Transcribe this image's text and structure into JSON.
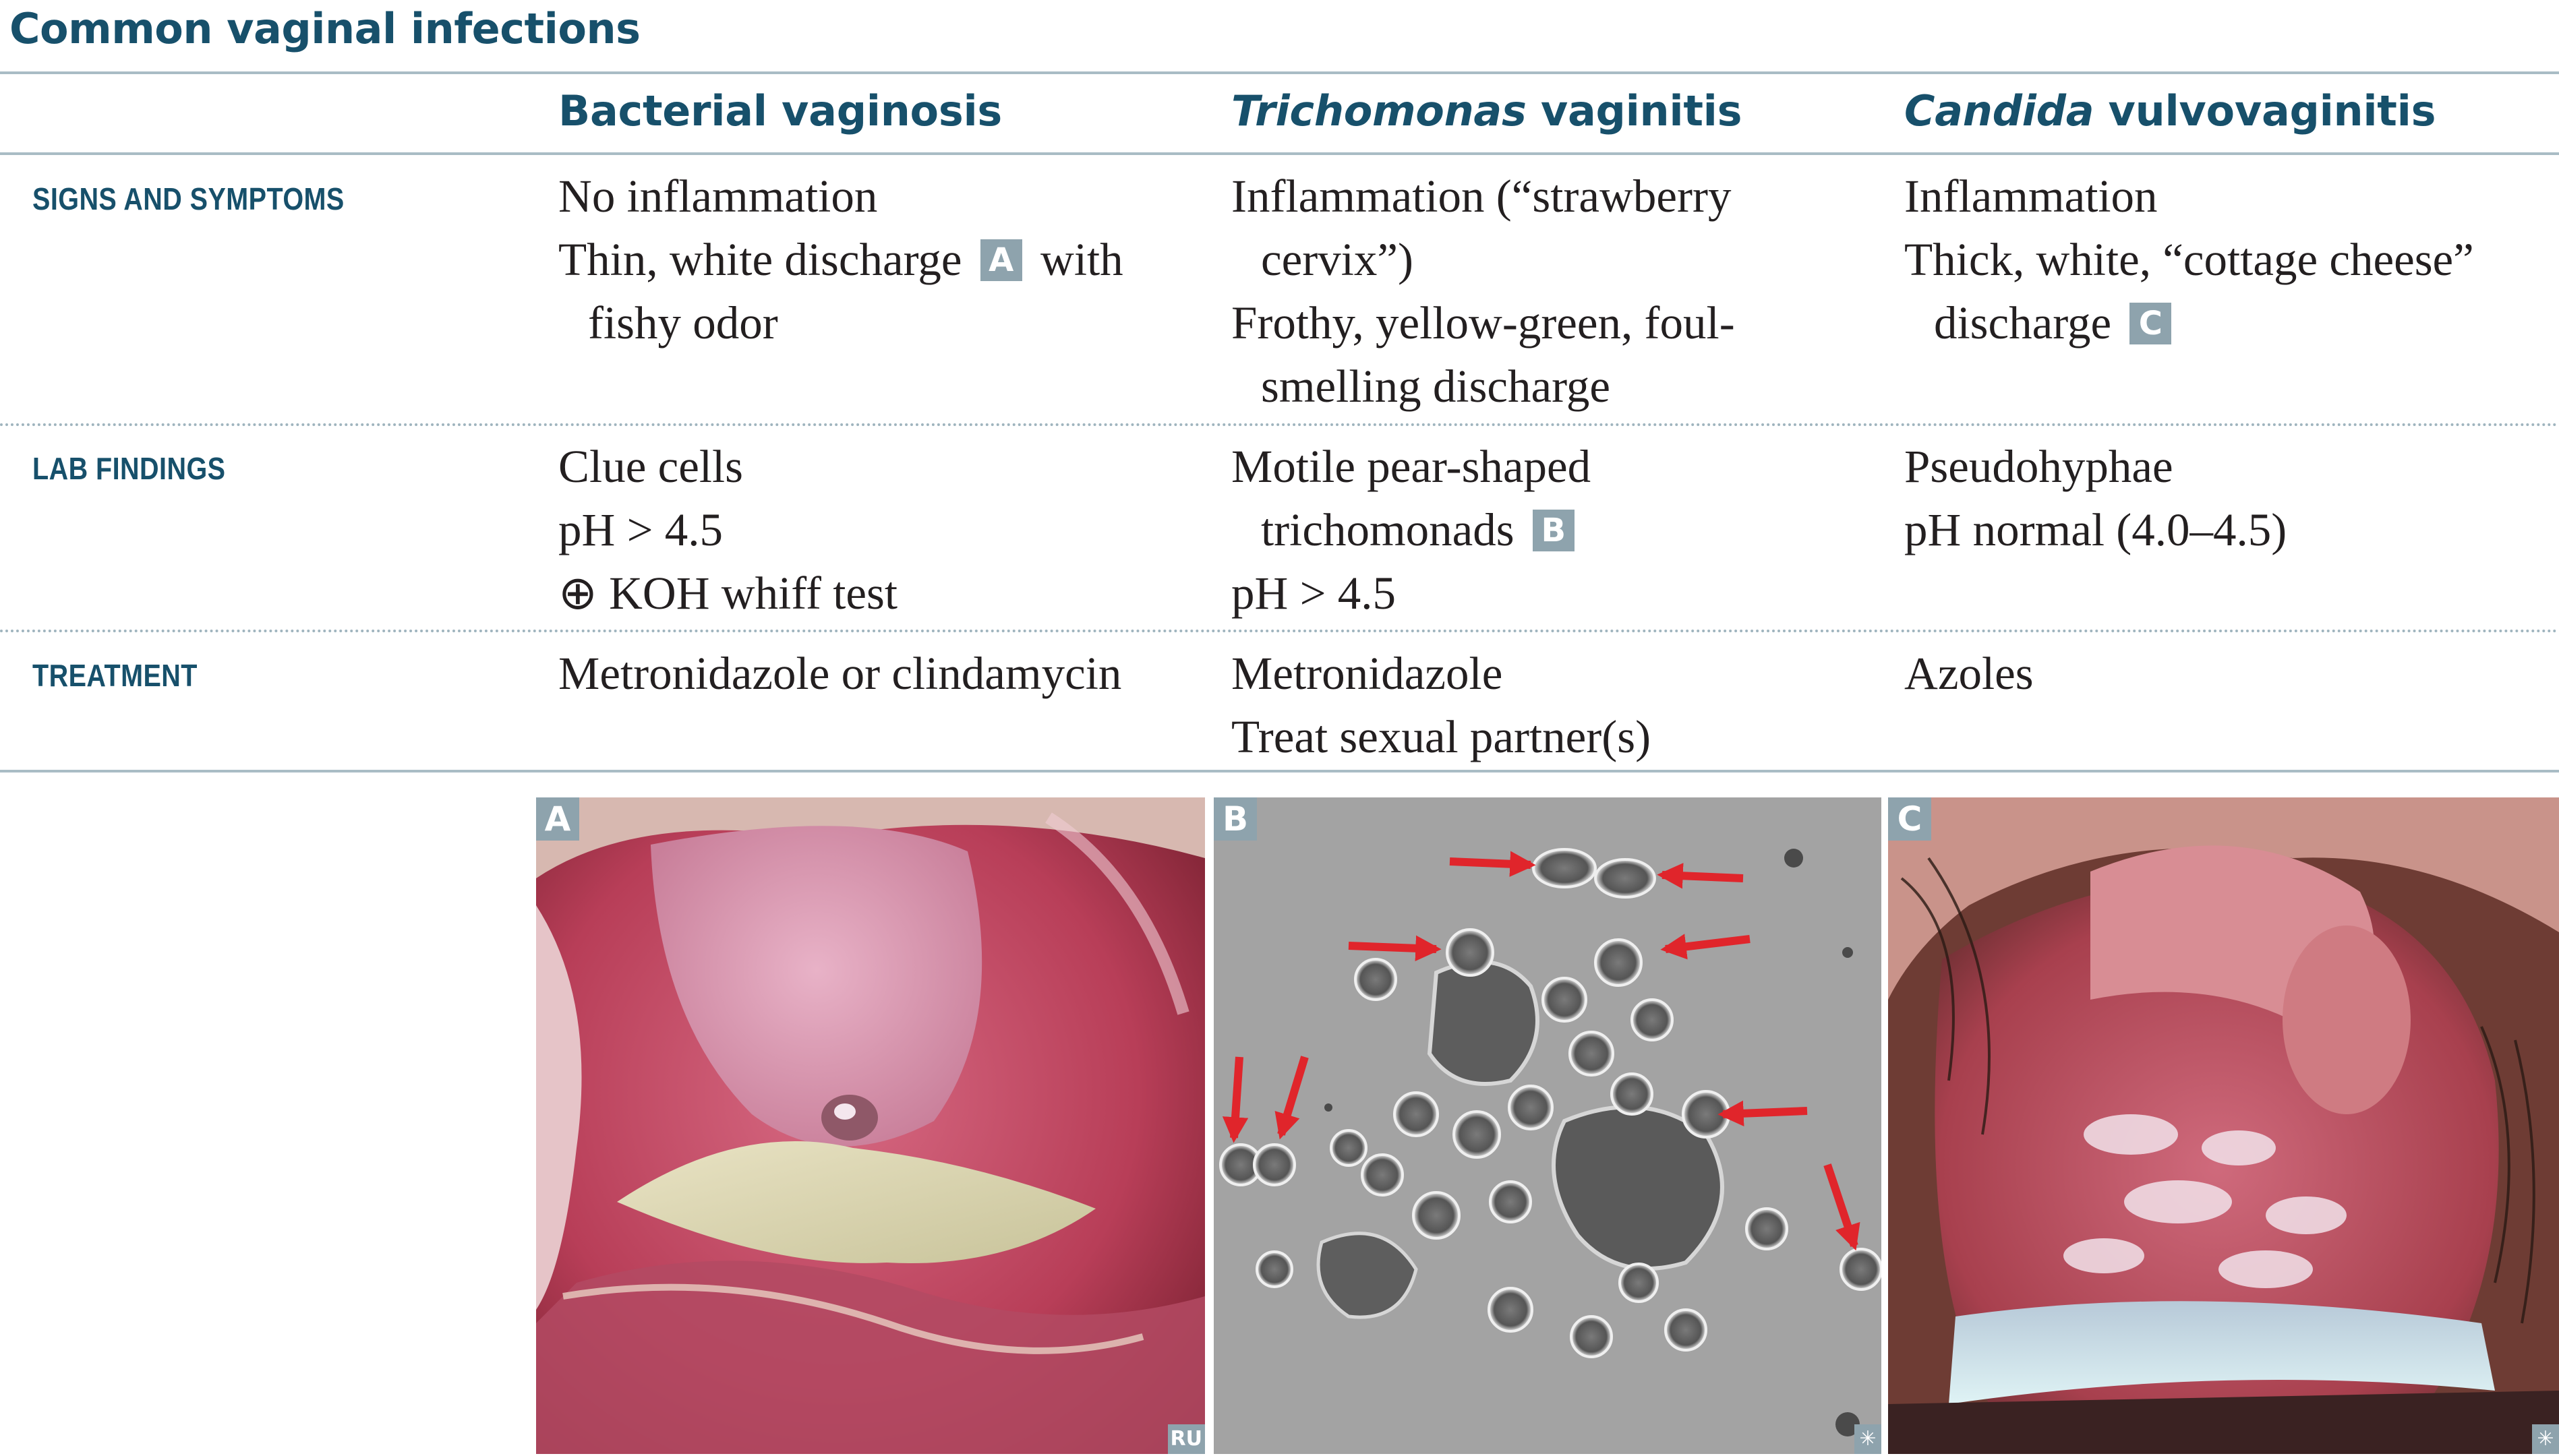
{
  "title": "Common vaginal infections",
  "columns": [
    {
      "prefix": "",
      "italic": "",
      "suffix": "Bacterial vaginosis"
    },
    {
      "prefix": "",
      "italic": "Trichomonas",
      "suffix": " vaginitis"
    },
    {
      "prefix": "",
      "italic": "Candida",
      "suffix": " vulvovaginitis"
    }
  ],
  "rows": [
    {
      "label": "SIGNS AND SYMPTOMS",
      "cells": [
        {
          "line1": "No inflammation",
          "line2a": "Thin, white discharge ",
          "badge": "A",
          "line2b": " with",
          "line3": "fishy odor"
        },
        {
          "line1": "Inflammation (“strawberry",
          "line2": "cervix”)",
          "line3": "Frothy, yellow-green, foul-",
          "line4": "smelling discharge"
        },
        {
          "line1": "Inflammation",
          "line2": "Thick, white, “cottage cheese”",
          "line3a": "discharge ",
          "badge": "C"
        }
      ]
    },
    {
      "label": "LAB FINDINGS",
      "cells": [
        {
          "line1": "Clue cells",
          "line2": "pH > 4.5",
          "line3": "⊕ KOH whiff test"
        },
        {
          "line1": "Motile pear-shaped",
          "line2a": "trichomonads ",
          "badge": "B",
          "line3": "pH > 4.5"
        },
        {
          "line1": "Pseudohyphae",
          "line2": "pH normal (4.0–4.5)"
        }
      ]
    },
    {
      "label": "TREATMENT",
      "cells": [
        {
          "line1": "Metronidazole or clindamycin"
        },
        {
          "line1": "Metronidazole",
          "line2": "Treat sexual partner(s)"
        },
        {
          "line1": "Azoles"
        }
      ]
    }
  ],
  "panels": [
    {
      "letter": "A",
      "credit": "RU",
      "image_icon": "clinical-photo-discharge"
    },
    {
      "letter": "B",
      "credit": "✳",
      "image_icon": "micrograph-trichomonads"
    },
    {
      "letter": "C",
      "credit": "✳",
      "image_icon": "clinical-photo-candida"
    }
  ],
  "colors": {
    "heading": "#17506b",
    "badge": "#8ea3ad",
    "rule": "#a9bcc5",
    "arrow": "#e0252b"
  }
}
